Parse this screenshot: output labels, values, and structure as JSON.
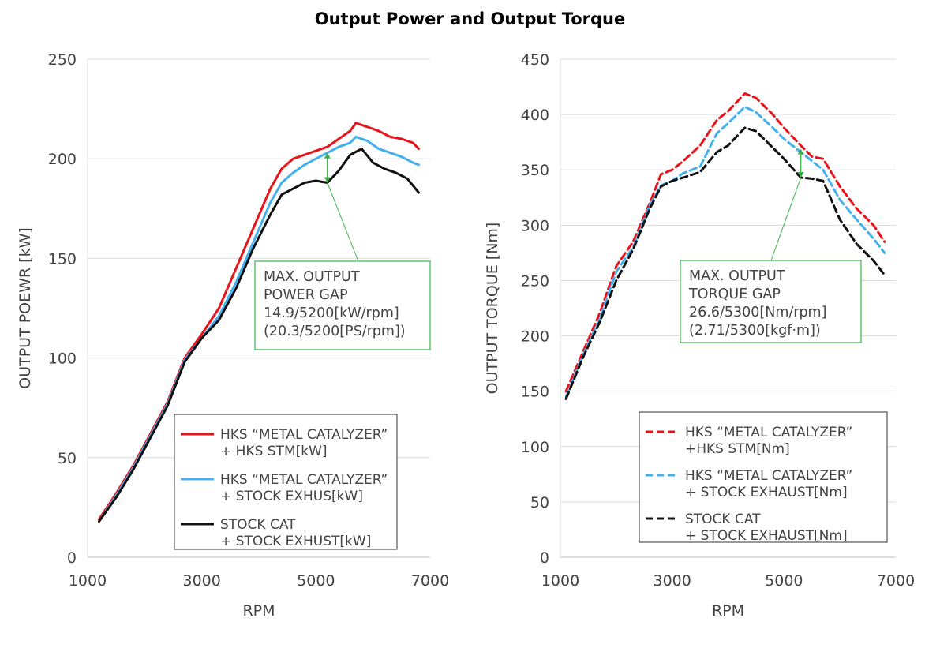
{
  "title": "Output Power and Output Torque",
  "chart_data": [
    {
      "type": "line",
      "xlabel": "RPM",
      "ylabel": "OUTPUT POEWR [kW]",
      "xlim": [
        1000,
        7000
      ],
      "ylim": [
        0,
        250
      ],
      "xticks": [
        "1000",
        "3000",
        "5000",
        "7000"
      ],
      "yticks": [
        "0",
        "50",
        "100",
        "150",
        "200",
        "250"
      ],
      "grid": "horizontal",
      "legend_position": "bottom-right",
      "annotation": {
        "lines": [
          "MAX. OUTPUT",
          "POWER GAP",
          "14.9/5200[kW/rpm]",
          "(20.3/5200[PS/rpm])"
        ],
        "color": "#3cb34a",
        "gap_x": 5200,
        "gap_y_top": 203,
        "gap_y_bottom": 188
      },
      "series": [
        {
          "name": "HKS “METAL CATALYZER”\n+ HKS STM[kW]",
          "legend_lines": [
            "HKS “METAL CATALYZER”",
            "+ HKS STM[kW]"
          ],
          "color": "#e8141c",
          "dash": false,
          "x": [
            1200,
            1500,
            1800,
            2100,
            2400,
            2700,
            3000,
            3300,
            3600,
            3900,
            4200,
            4400,
            4600,
            4800,
            5000,
            5200,
            5400,
            5600,
            5700,
            5900,
            6100,
            6300,
            6500,
            6700,
            6800
          ],
          "y": [
            19,
            32,
            46,
            62,
            78,
            100,
            112,
            125,
            145,
            165,
            185,
            195,
            200,
            202,
            204,
            206,
            210,
            214,
            218,
            216,
            214,
            211,
            210,
            208,
            205
          ]
        },
        {
          "name": "HKS “METAL CATALYZER”\n+ STOCK EXHUS[kW]",
          "legend_lines": [
            "HKS “METAL CATALYZER”",
            "+ STOCK EXHUS[kW]"
          ],
          "color": "#45b0ee",
          "dash": false,
          "x": [
            1200,
            1500,
            1800,
            2100,
            2400,
            2700,
            3000,
            3300,
            3600,
            3900,
            4200,
            4400,
            4600,
            4800,
            5000,
            5200,
            5400,
            5600,
            5700,
            5900,
            6100,
            6300,
            6500,
            6700,
            6800
          ],
          "y": [
            18,
            31,
            45,
            61,
            77,
            99,
            110,
            121,
            138,
            158,
            178,
            188,
            193,
            197,
            200,
            203,
            206,
            208,
            211,
            209,
            205,
            203,
            201,
            198,
            197
          ]
        },
        {
          "name": "STOCK CAT\n+ STOCK EXHUST[kW]",
          "legend_lines": [
            "STOCK CAT",
            "+ STOCK EXHUST[kW]"
          ],
          "color": "#111111",
          "dash": false,
          "x": [
            1200,
            1500,
            1800,
            2100,
            2400,
            2700,
            3000,
            3300,
            3600,
            3900,
            4200,
            4400,
            4600,
            4800,
            5000,
            5200,
            5400,
            5600,
            5800,
            6000,
            6200,
            6400,
            6600,
            6800
          ],
          "y": [
            18,
            30,
            44,
            60,
            76,
            98,
            110,
            119,
            135,
            155,
            172,
            182,
            185,
            188,
            189,
            188,
            194,
            202,
            205,
            198,
            195,
            193,
            190,
            183
          ]
        }
      ]
    },
    {
      "type": "line",
      "xlabel": "RPM",
      "ylabel": "OUTPUT TORQUE [Nm]",
      "xlim": [
        1000,
        7000
      ],
      "ylim": [
        0,
        450
      ],
      "xticks": [
        "1000",
        "3000",
        "5000",
        "7000"
      ],
      "yticks": [
        "0",
        "50",
        "100",
        "150",
        "200",
        "250",
        "300",
        "350",
        "400",
        "450"
      ],
      "grid": "horizontal",
      "legend_position": "bottom-right",
      "annotation": {
        "lines": [
          "MAX. OUTPUT",
          "TORQUE GAP",
          "26.6/5300[Nm/rpm]",
          "(2.71/5300[kgf·m])"
        ],
        "color": "#3cb34a",
        "gap_x": 5300,
        "gap_y_top": 369,
        "gap_y_bottom": 343
      },
      "series": [
        {
          "name": "HKS “METAL CATALYZER”\n+HKS STM[Nm]",
          "legend_lines": [
            "HKS “METAL CATALYZER”",
            "+HKS STM[Nm]"
          ],
          "color": "#e8141c",
          "dash": true,
          "x": [
            1100,
            1400,
            1700,
            2000,
            2300,
            2600,
            2800,
            3000,
            3200,
            3500,
            3800,
            4000,
            4300,
            4500,
            4800,
            5000,
            5300,
            5500,
            5700,
            6000,
            6300,
            6600,
            6800
          ],
          "y": [
            150,
            185,
            220,
            263,
            285,
            320,
            346,
            350,
            358,
            372,
            395,
            403,
            419,
            415,
            400,
            388,
            372,
            362,
            360,
            335,
            315,
            300,
            285
          ]
        },
        {
          "name": "HKS “METAL CATALYZER”\n+ STOCK EXHAUST[Nm]",
          "legend_lines": [
            "HKS “METAL CATALYZER”",
            "+ STOCK EXHAUST[Nm]"
          ],
          "color": "#45b0ee",
          "dash": true,
          "x": [
            1100,
            1400,
            1700,
            2000,
            2300,
            2600,
            2800,
            3000,
            3200,
            3500,
            3800,
            4000,
            4300,
            4500,
            4800,
            5000,
            5300,
            5500,
            5700,
            6000,
            6300,
            6600,
            6800
          ],
          "y": [
            145,
            182,
            215,
            258,
            280,
            318,
            336,
            340,
            347,
            353,
            383,
            392,
            407,
            402,
            388,
            378,
            366,
            358,
            350,
            323,
            305,
            288,
            275
          ]
        },
        {
          "name": "STOCK CAT\n+ STOCK EXHAUST[Nm]",
          "legend_lines": [
            "STOCK CAT",
            "+ STOCK EXHAUST[Nm]"
          ],
          "color": "#111111",
          "dash": true,
          "x": [
            1100,
            1400,
            1700,
            2000,
            2300,
            2600,
            2800,
            3000,
            3200,
            3500,
            3800,
            4000,
            4300,
            4500,
            4800,
            5000,
            5300,
            5500,
            5700,
            6000,
            6300,
            6600,
            6800
          ],
          "y": [
            143,
            180,
            212,
            250,
            278,
            315,
            335,
            340,
            343,
            348,
            366,
            372,
            388,
            385,
            370,
            360,
            343,
            342,
            340,
            305,
            283,
            268,
            255
          ]
        }
      ]
    }
  ]
}
